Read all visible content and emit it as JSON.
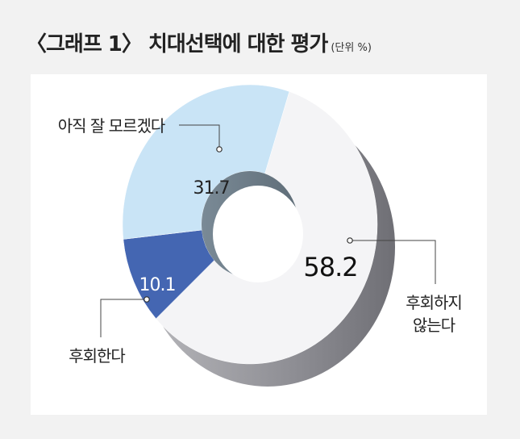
{
  "title": "〈그래프 1〉 치대선택에 대한 평가",
  "unit": "(단위 %)",
  "chart_data": {
    "type": "pie",
    "variant": "3d-donut",
    "unit": "%",
    "slices": [
      {
        "label": "후회하지 않는다",
        "value": 58.2,
        "color": "#f4f4f6"
      },
      {
        "label": "후회한다",
        "value": 10.1,
        "color": "#4466b2"
      },
      {
        "label": "아직 잘 모르겠다",
        "value": 31.7,
        "color": "#c9e4f6"
      }
    ],
    "values_text": [
      "58.2",
      "10.1",
      "31.7"
    ],
    "labels_text": [
      "아직 잘 모르겠다",
      "후회한다",
      "후회하지",
      "않는다"
    ]
  }
}
